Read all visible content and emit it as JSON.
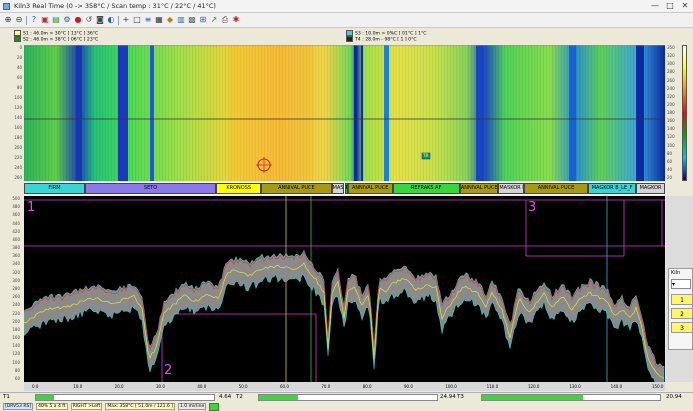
{
  "window": {
    "title": "Kiln3 Real Time (0 -> 358°C / Scan temp : 31°C / 22°C / 41°C)",
    "controls": [
      "—",
      "□",
      "✕"
    ]
  },
  "toolbar": {
    "icons": [
      "zoom-in-icon",
      "zoom-out-icon",
      "help-icon",
      "image-icon",
      "palette-icon",
      "settings-icon",
      "record-icon",
      "undo-icon",
      "camera-icon",
      "view-icon",
      "cursor-icon",
      "box-icon",
      "chart-icon",
      "save-icon",
      "color-icon",
      "report-icon",
      "grid-icon",
      "filter-icon",
      "export-icon",
      "print-icon",
      "stop-icon"
    ]
  },
  "legends": {
    "left": [
      {
        "text": "S1 : 46.0m > 30°C [ 13°C ] 36°C",
        "color": "#fdff7a"
      },
      {
        "text": "S2 : 46.0m > 38°C [ 06°C ] 23°C",
        "color": "#1e8f1e"
      }
    ],
    "right": [
      {
        "text": "S3 : 10.0m > 0%C [ 01°C ] 1°C",
        "color": "#3ad4d4"
      },
      {
        "text": "T4 : 28.0m - 98°C [ 1 ] 0°C",
        "color": "#222222"
      }
    ]
  },
  "thermo": {
    "cursor_label": "TR",
    "left_axis": [
      "0",
      "20",
      "40",
      "60",
      "80",
      "100",
      "120",
      "140",
      "160",
      "180",
      "200",
      "220",
      "240",
      "260"
    ],
    "right_axis": [
      "350",
      "320",
      "300",
      "280",
      "260",
      "240",
      "220",
      "200",
      "180",
      "160",
      "140",
      "120",
      "100",
      "80",
      "60",
      "40",
      "20"
    ]
  },
  "zones": [
    {
      "label": "FIRM",
      "color": "#3ad4d4",
      "start": 0,
      "end": 0.095
    },
    {
      "label": "SETO",
      "color": "#8a7ae8",
      "start": 0.095,
      "end": 0.3
    },
    {
      "label": "KRONOSS",
      "color": "#ffff00",
      "start": 0.3,
      "end": 0.37
    },
    {
      "label": "ANNIVAL PUCE",
      "color": "#a69a14",
      "start": 0.37,
      "end": 0.48
    },
    {
      "label": "MASKOR B",
      "color": "#d4d4d4",
      "start": 0.48,
      "end": 0.5
    },
    {
      "label": "PCF",
      "color": "#2aa52a",
      "start": 0.5,
      "end": 0.505
    },
    {
      "label": "ANNIVAL PUCE",
      "color": "#a69a14",
      "start": 0.505,
      "end": 0.575
    },
    {
      "label": "REFRAKS AF",
      "color": "#3cd43c",
      "start": 0.575,
      "end": 0.68
    },
    {
      "label": "ANNIVAL PUCE",
      "color": "#a69a14",
      "start": 0.68,
      "end": 0.74
    },
    {
      "label": "MASKOR B",
      "color": "#d4d4d4",
      "start": 0.74,
      "end": 0.78
    },
    {
      "label": "ANNIVAL PUCE",
      "color": "#a69a14",
      "start": 0.78,
      "end": 0.88
    },
    {
      "label": "MAGKOR B_LE_F",
      "color": "#3ad4d4",
      "start": 0.88,
      "end": 0.955
    },
    {
      "label": "MAGKOR",
      "color": "#d4d4d4",
      "start": 0.955,
      "end": 1
    }
  ],
  "profile": {
    "markers": [
      "1",
      "2",
      "3"
    ],
    "y_axis": [
      "500",
      "480",
      "460",
      "440",
      "420",
      "400",
      "380",
      "360",
      "340",
      "320",
      "300",
      "280",
      "260",
      "240",
      "220",
      "200",
      "180",
      "160",
      "140",
      "120",
      "100",
      "80",
      "60"
    ],
    "x_axis": [
      "0.0",
      "10.0",
      "20.0",
      "30.0",
      "40.0",
      "50.0",
      "60.0",
      "70.0",
      "80.0",
      "90.0",
      "100.0",
      "110.0",
      "120.0",
      "130.0",
      "140.0",
      "150.0"
    ]
  },
  "side_panel": {
    "title": "Kiln",
    "entries": [
      "1",
      "2",
      "3"
    ]
  },
  "status": {
    "t1_label": "T1",
    "t1_value": "4.64",
    "t1_fill": 0.1,
    "t2_label": "T2",
    "t2_value": "24.94",
    "t2_fill": 0.22,
    "t3_label": "T3",
    "t3_value": "20.94",
    "t3_fill": 0.57,
    "chips": [
      "[DRV53 RS]",
      "40% 5 a 4 ft",
      "RIGHT >Left",
      "Max: 358°C [ 51.0m / 121.6 ]",
      "1.0 mirline"
    ]
  }
}
